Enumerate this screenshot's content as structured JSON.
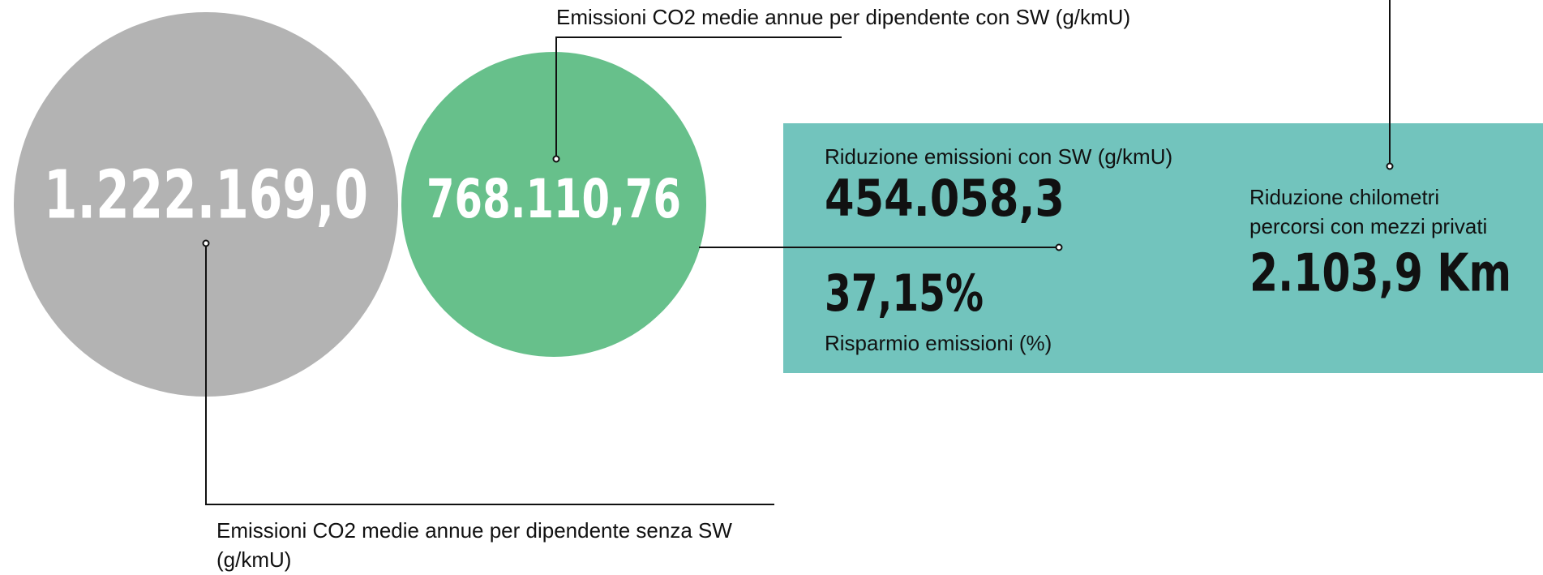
{
  "without_sw": {
    "value": "1.222.169,0",
    "label_lines": [
      "Emissioni CO2 medie annue per dipendente senza SW",
      "(g/kmU)"
    ]
  },
  "with_sw": {
    "value": "768.110,76",
    "label": "Emissioni CO2 medie annue per dipendente con SW (g/kmU)"
  },
  "reduction": {
    "label": "Riduzione emissioni con SW (g/kmU)",
    "value": "454.058,3"
  },
  "saving": {
    "value": "37,15%",
    "label": "Risparmio emissioni (%)"
  },
  "km_reduction": {
    "label_lines": [
      "Riduzione chilometri",
      "percorsi con mezzi privati"
    ],
    "value": "2.103,9 Km"
  }
}
